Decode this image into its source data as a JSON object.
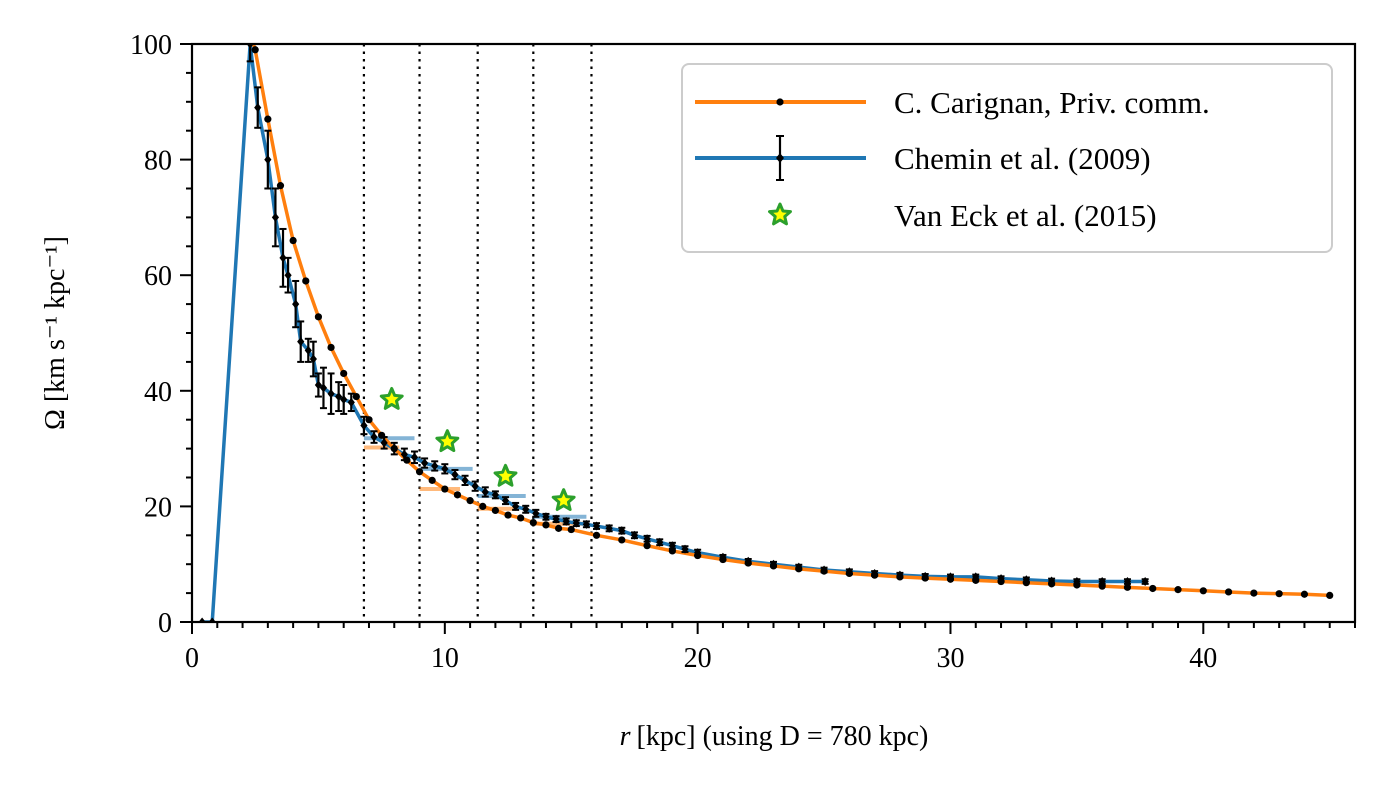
{
  "chart_data": {
    "type": "line",
    "xlabel_r": "r",
    "xlabel_rest": "[kpc] (using D = 780 kpc)",
    "ylabel": "Ω [km s⁻¹ kpc⁻¹]",
    "xlim": [
      0,
      46
    ],
    "ylim": [
      0,
      100
    ],
    "x_ticks": [
      0,
      10,
      20,
      30,
      40
    ],
    "y_ticks": [
      0,
      20,
      40,
      60,
      80,
      100
    ],
    "grid": false,
    "legend_position": "top-right",
    "vertical_lines": [
      6.8,
      9.0,
      11.3,
      13.5,
      15.8
    ],
    "colors": {
      "orange": "#ff7f0e",
      "blue": "#1f77b4",
      "green": "#2ca02c",
      "yellow": "#ffff00",
      "black": "#000000"
    },
    "series": [
      {
        "name": "C. Carignan, Priv. comm.",
        "x": [
          2.0,
          2.5,
          3.0,
          3.5,
          4.0,
          4.5,
          5.0,
          5.5,
          6.0,
          6.5,
          7.0,
          7.5,
          8.0,
          8.5,
          9.0,
          9.5,
          10.0,
          10.5,
          11.0,
          11.5,
          12.0,
          12.5,
          13.0,
          13.5,
          14.0,
          14.5,
          15.0,
          16.0,
          17.0,
          18.0,
          19.0,
          20.0,
          21.0,
          22.0,
          23.0,
          24.0,
          25.0,
          26.0,
          27.0,
          28.0,
          29.0,
          30.0,
          31.0,
          32.0,
          33.0,
          34.0,
          35.0,
          36.0,
          37.0,
          38.0,
          39.0,
          40.0,
          41.0,
          42.0,
          43.0,
          44.0,
          45.0
        ],
        "values": [
          106.0,
          99.0,
          87.0,
          75.5,
          66.0,
          59.0,
          52.8,
          47.5,
          43.0,
          39.0,
          35.0,
          32.3,
          30.0,
          28.0,
          26.0,
          24.5,
          23.0,
          22.0,
          21.0,
          20.0,
          19.3,
          18.5,
          18.0,
          17.2,
          16.8,
          16.2,
          16.0,
          15.0,
          14.2,
          13.2,
          12.3,
          11.5,
          10.8,
          10.2,
          9.7,
          9.2,
          8.8,
          8.4,
          8.1,
          7.8,
          7.6,
          7.4,
          7.2,
          7.0,
          6.8,
          6.6,
          6.4,
          6.2,
          6.0,
          5.8,
          5.6,
          5.4,
          5.2,
          5.0,
          4.9,
          4.8,
          4.6
        ]
      },
      {
        "name": "Chemin et al. (2009)",
        "x": [
          0.4,
          0.8,
          2.3,
          2.6,
          3.0,
          3.3,
          3.6,
          3.8,
          4.1,
          4.3,
          4.6,
          4.8,
          5.0,
          5.2,
          5.5,
          5.8,
          6.0,
          6.3,
          6.8,
          7.2,
          7.6,
          8.0,
          8.4,
          8.8,
          9.2,
          9.6,
          10.0,
          10.4,
          10.8,
          11.2,
          11.6,
          12.0,
          12.4,
          12.8,
          13.2,
          13.6,
          14.0,
          14.4,
          14.8,
          15.2,
          15.6,
          16.0,
          16.5,
          17.0,
          17.5,
          18.0,
          18.5,
          19.0,
          19.5,
          20.0,
          21.0,
          22.0,
          23.0,
          24.0,
          25.0,
          26.0,
          27.0,
          28.0,
          29.0,
          30.0,
          31.0,
          32.0,
          33.0,
          34.0,
          35.0,
          36.0,
          37.0,
          37.7
        ],
        "values": [
          0.0,
          0.0,
          100.0,
          89.0,
          80.0,
          70.0,
          63.0,
          60.0,
          55.0,
          48.5,
          47.0,
          45.5,
          41.0,
          40.5,
          39.5,
          39.0,
          38.5,
          38.0,
          34.0,
          32.0,
          31.0,
          30.0,
          29.0,
          28.5,
          27.5,
          27.0,
          26.5,
          25.5,
          24.5,
          23.5,
          22.5,
          22.0,
          21.0,
          20.0,
          19.5,
          18.8,
          18.2,
          17.8,
          17.4,
          17.1,
          16.9,
          16.6,
          16.2,
          15.8,
          15.0,
          14.4,
          13.8,
          13.2,
          12.6,
          12.0,
          11.2,
          10.5,
          10.0,
          9.5,
          9.0,
          8.7,
          8.4,
          8.1,
          7.9,
          7.8,
          7.8,
          7.5,
          7.3,
          7.1,
          7.0,
          7.0,
          7.0,
          7.0
        ],
        "errors": [
          0,
          0,
          3.0,
          3.5,
          5.0,
          5.0,
          5.0,
          3.0,
          4.0,
          3.5,
          2.0,
          3.0,
          2.0,
          3.5,
          3.5,
          2.5,
          2.5,
          1.5,
          1.5,
          1.0,
          1.0,
          1.0,
          1.0,
          1.0,
          0.8,
          0.8,
          0.8,
          0.8,
          0.8,
          0.8,
          0.8,
          0.6,
          0.6,
          0.6,
          0.6,
          0.6,
          0.5,
          0.5,
          0.5,
          0.5,
          0.5,
          0.5,
          0.5,
          0.5,
          0.5,
          0.5,
          0.5,
          0.5,
          0.5,
          0.5,
          0.4,
          0.4,
          0.4,
          0.4,
          0.4,
          0.4,
          0.4,
          0.4,
          0.4,
          0.4,
          0.4,
          0.4,
          0.4,
          0.4,
          0.4,
          0.4,
          0.4,
          0.4
        ]
      },
      {
        "name": "Van Eck et al. (2015)",
        "x": [
          7.9,
          10.1,
          12.4,
          14.7
        ],
        "values": [
          38.5,
          31.2,
          25.2,
          21.0
        ]
      }
    ],
    "segments_orange": [
      {
        "x0": 6.8,
        "x1": 8.2,
        "y": 30.2
      },
      {
        "x0": 9.0,
        "x1": 10.6,
        "y": 23.0
      },
      {
        "x0": 11.3,
        "x1": 12.8,
        "y": 19.6
      },
      {
        "x0": 13.5,
        "x1": 15.5,
        "y": 17.0
      }
    ],
    "segments_blue": [
      {
        "x0": 6.8,
        "x1": 8.8,
        "y": 31.8
      },
      {
        "x0": 9.0,
        "x1": 11.1,
        "y": 26.5
      },
      {
        "x0": 11.3,
        "x1": 13.2,
        "y": 21.8
      },
      {
        "x0": 13.5,
        "x1": 15.6,
        "y": 18.2
      }
    ]
  }
}
